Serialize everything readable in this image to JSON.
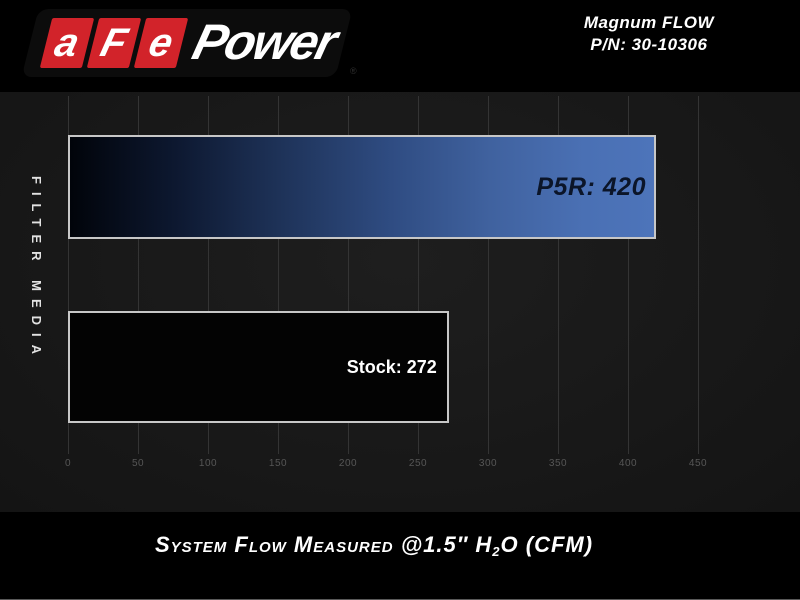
{
  "brand": {
    "segments": [
      "a",
      "F",
      "e"
    ],
    "word": "Power",
    "registered": "®"
  },
  "header": {
    "line1": "Magnum FLOW",
    "line2": "P/N: 30-10306"
  },
  "side_label": "FILTER MEDIA",
  "chart_data": {
    "type": "bar",
    "orientation": "horizontal",
    "categories": [
      "P5R",
      "Stock"
    ],
    "values": [
      420,
      272
    ],
    "bar_labels": [
      "P5R: 420",
      "Stock: 272"
    ],
    "title": "System Flow Measured @1.5\" H₂O (CFM)",
    "xlabel": "",
    "ylabel": "FILTER MEDIA",
    "xlim": [
      0,
      450
    ],
    "xticks": [
      0,
      50,
      100,
      150,
      200,
      250,
      300,
      350,
      400,
      450
    ],
    "grid": true,
    "legend_position": "none",
    "colors": {
      "p5r_gradient_start": "#01040a",
      "p5r_gradient_end": "#4d74ba",
      "stock_fill": "#030303",
      "bar_border": "#c7c7c7",
      "gridline": "#343434",
      "tick_text": "#565656",
      "plot_bg": "#1a1a1a",
      "page_bg": "#000000",
      "brand_red": "#d2232a",
      "p5r_label_text": "#0b1529",
      "stock_label_text": "#ffffff"
    }
  },
  "footer": {
    "title_pre": "System Flow Measured @1.5″ H",
    "title_sub": "2",
    "title_post": "O (CFM)"
  }
}
